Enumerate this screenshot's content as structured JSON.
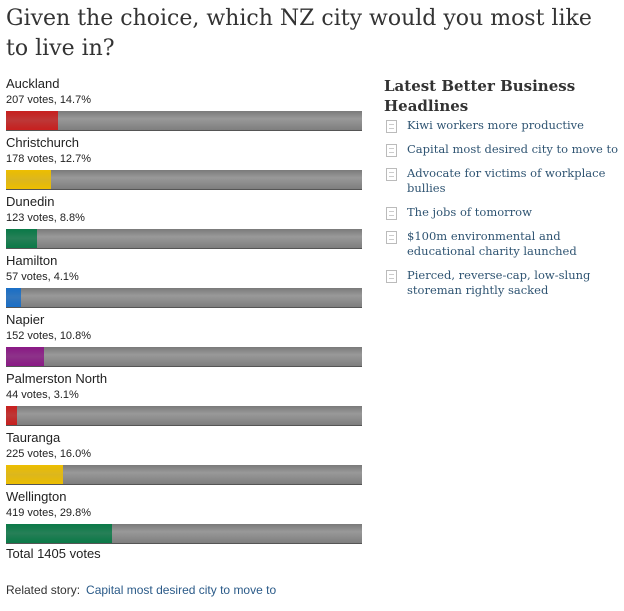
{
  "poll": {
    "question": "Given the choice, which NZ city would you most like to live in?",
    "options": [
      {
        "name": "Auckland",
        "votes_text": "207 votes, 14.7%",
        "percent": 14.7,
        "color": "#c8201f"
      },
      {
        "name": "Christchurch",
        "votes_text": "178 votes, 12.7%",
        "percent": 12.7,
        "color": "#eebf00"
      },
      {
        "name": "Dunedin",
        "votes_text": "123 votes, 8.8%",
        "percent": 8.8,
        "color": "#0b7a48"
      },
      {
        "name": "Hamilton",
        "votes_text": "57 votes, 4.1%",
        "percent": 4.1,
        "color": "#1a6fc7"
      },
      {
        "name": "Napier",
        "votes_text": "152 votes, 10.8%",
        "percent": 10.8,
        "color": "#8b1a86"
      },
      {
        "name": "Palmerston North",
        "votes_text": "44 votes, 3.1%",
        "percent": 3.1,
        "color": "#c8201f"
      },
      {
        "name": "Tauranga",
        "votes_text": "225 votes, 16.0%",
        "percent": 16.0,
        "color": "#eebf00"
      },
      {
        "name": "Wellington",
        "votes_text": "419 votes, 29.8%",
        "percent": 29.8,
        "color": "#0b7a48"
      }
    ],
    "total": "Total 1405 votes"
  },
  "related": {
    "label": "Related story:",
    "link": "Capital most desired city to move to"
  },
  "sidebar": {
    "title": "Latest Better Business Headlines",
    "items": [
      "Kiwi workers more productive",
      "Capital most desired city to move to",
      "Advocate for victims of workplace bullies",
      "The jobs of tomorrow",
      "$100m environmental and educational charity launched",
      "Pierced, reverse-cap, low-slung storeman rightly sacked"
    ]
  }
}
